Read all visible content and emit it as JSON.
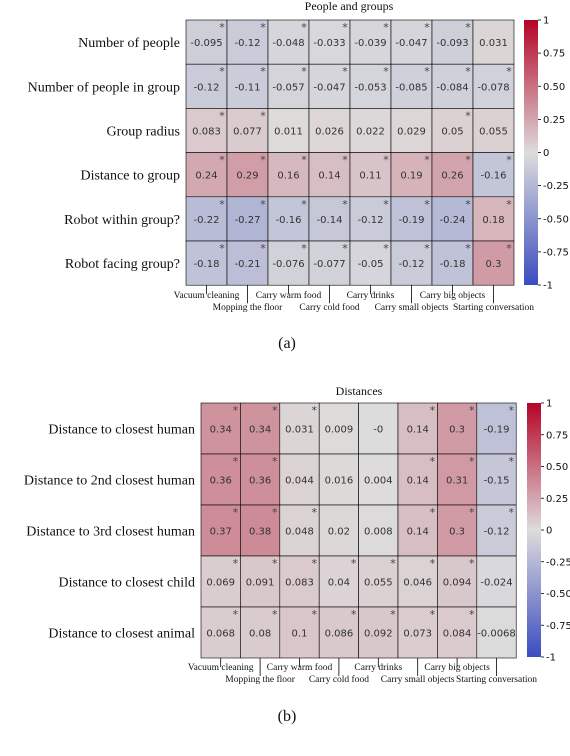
{
  "colors": {
    "negative": "#3b4cc0",
    "neutral": "#dddcdc",
    "positive": "#b40426",
    "cell_border": "#000000"
  },
  "chart_data": [
    {
      "type": "heatmap",
      "title": "People and groups",
      "caption": "(a)",
      "rows": [
        "Number of people",
        "Number of people in group",
        "Group radius",
        "Distance to group",
        "Robot within group?",
        "Robot facing group?"
      ],
      "columns": [
        "Vacuum cleaning",
        "Mopping the floor",
        "Carry warm food",
        "Carry cold food",
        "Carry drinks",
        "Carry small objects",
        "Carry big objects",
        "Starting conversation"
      ],
      "values": [
        [
          -0.095,
          -0.12,
          -0.048,
          -0.033,
          -0.039,
          -0.047,
          -0.093,
          0.031
        ],
        [
          -0.12,
          -0.11,
          -0.057,
          -0.047,
          -0.053,
          -0.085,
          -0.084,
          -0.078
        ],
        [
          0.083,
          0.077,
          0.011,
          0.026,
          0.022,
          0.029,
          0.05,
          0.055
        ],
        [
          0.24,
          0.29,
          0.16,
          0.14,
          0.11,
          0.19,
          0.26,
          -0.16
        ],
        [
          -0.22,
          -0.27,
          -0.16,
          -0.14,
          -0.12,
          -0.19,
          -0.24,
          0.18
        ],
        [
          -0.18,
          -0.21,
          -0.076,
          -0.077,
          -0.05,
          -0.12,
          -0.18,
          0.3
        ]
      ],
      "labels": [
        [
          "-0.095",
          "-0.12",
          "-0.048",
          "-0.033",
          "-0.039",
          "-0.047",
          "-0.093",
          "0.031"
        ],
        [
          "-0.12",
          "-0.11",
          "-0.057",
          "-0.047",
          "-0.053",
          "-0.085",
          "-0.084",
          "-0.078"
        ],
        [
          "0.083",
          "0.077",
          "0.011",
          "0.026",
          "0.022",
          "0.029",
          "0.05",
          "0.055"
        ],
        [
          "0.24",
          "0.29",
          "0.16",
          "0.14",
          "0.11",
          "0.19",
          "0.26",
          "-0.16"
        ],
        [
          "-0.22",
          "-0.27",
          "-0.16",
          "-0.14",
          "-0.12",
          "-0.19",
          "-0.24",
          "0.18"
        ],
        [
          "-0.18",
          "-0.21",
          "-0.076",
          "-0.077",
          "-0.05",
          "-0.12",
          "-0.18",
          "0.3"
        ]
      ],
      "significant": [
        [
          true,
          true,
          true,
          true,
          true,
          true,
          true,
          false
        ],
        [
          true,
          true,
          true,
          true,
          true,
          true,
          true,
          true
        ],
        [
          true,
          true,
          false,
          false,
          false,
          false,
          true,
          false
        ],
        [
          true,
          true,
          true,
          true,
          true,
          true,
          true,
          true
        ],
        [
          true,
          true,
          true,
          true,
          true,
          true,
          true,
          true
        ],
        [
          true,
          true,
          true,
          true,
          true,
          true,
          true,
          true
        ]
      ],
      "colorbar": {
        "range": [
          -1,
          1
        ],
        "ticks": [
          "1",
          "0.75",
          "0.50",
          "0.25",
          "0",
          "-0.25",
          "-0.50",
          "-0.75",
          "-1"
        ]
      }
    },
    {
      "type": "heatmap",
      "title": "Distances",
      "caption": "(b)",
      "rows": [
        "Distance to closest human",
        "Distance to 2nd closest human",
        "Distance to 3rd closest human",
        "Distance to closest child",
        "Distance to closest animal"
      ],
      "columns": [
        "Vacuum cleaning",
        "Mopping the floor",
        "Carry warm food",
        "Carry cold food",
        "Carry drinks",
        "Carry small objects",
        "Carry big objects",
        "Starting conversation"
      ],
      "values": [
        [
          0.34,
          0.34,
          0.031,
          0.009,
          0,
          0.14,
          0.3,
          -0.19
        ],
        [
          0.36,
          0.36,
          0.044,
          0.016,
          0.004,
          0.14,
          0.31,
          -0.15
        ],
        [
          0.37,
          0.38,
          0.048,
          0.02,
          0.008,
          0.14,
          0.3,
          -0.12
        ],
        [
          0.069,
          0.091,
          0.083,
          0.04,
          0.055,
          0.046,
          0.094,
          -0.024
        ],
        [
          0.068,
          0.08,
          0.1,
          0.086,
          0.092,
          0.073,
          0.084,
          -0.0068
        ]
      ],
      "labels": [
        [
          "0.34",
          "0.34",
          "0.031",
          "0.009",
          "-0",
          "0.14",
          "0.3",
          "-0.19"
        ],
        [
          "0.36",
          "0.36",
          "0.044",
          "0.016",
          "0.004",
          "0.14",
          "0.31",
          "-0.15"
        ],
        [
          "0.37",
          "0.38",
          "0.048",
          "0.02",
          "0.008",
          "0.14",
          "0.3",
          "-0.12"
        ],
        [
          "0.069",
          "0.091",
          "0.083",
          "0.04",
          "0.055",
          "0.046",
          "0.094",
          "-0.024"
        ],
        [
          "0.068",
          "0.08",
          "0.1",
          "0.086",
          "0.092",
          "0.073",
          "0.084",
          "-0.0068"
        ]
      ],
      "significant": [
        [
          true,
          true,
          true,
          false,
          false,
          true,
          true,
          true
        ],
        [
          true,
          true,
          false,
          false,
          false,
          true,
          true,
          true
        ],
        [
          true,
          true,
          true,
          false,
          false,
          true,
          true,
          true
        ],
        [
          true,
          true,
          true,
          true,
          true,
          true,
          true,
          false
        ],
        [
          true,
          true,
          true,
          true,
          true,
          true,
          true,
          false
        ]
      ],
      "colorbar": {
        "range": [
          -1,
          1
        ],
        "ticks": [
          "1",
          "0.75",
          "0.50",
          "0.25",
          "0",
          "-0.25",
          "-0.50",
          "-0.75",
          "-1"
        ]
      }
    }
  ]
}
